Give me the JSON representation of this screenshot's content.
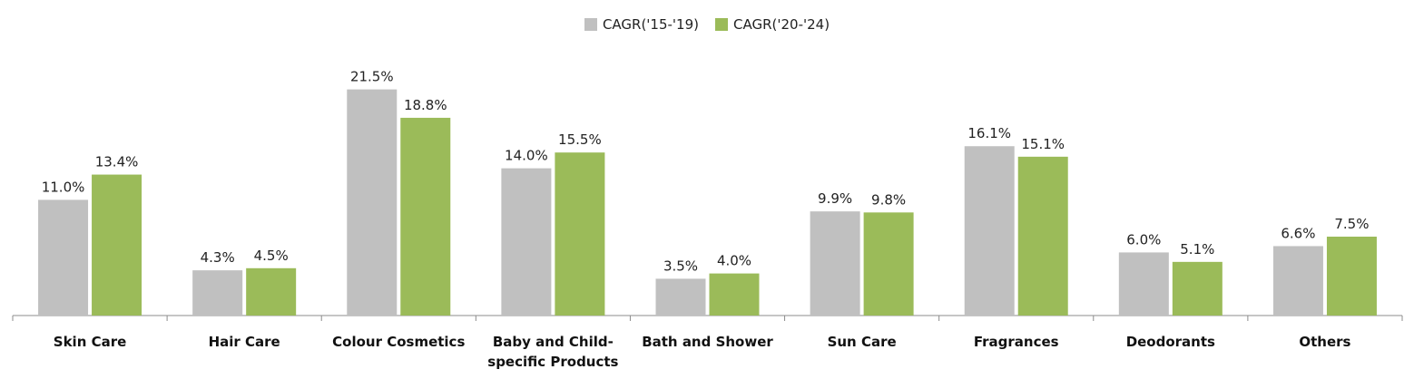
{
  "chart_data": {
    "type": "bar",
    "title": "",
    "xlabel": "",
    "ylabel": "",
    "ylim": [
      0,
      24
    ],
    "grid": false,
    "legend_position": "top-center",
    "categories": [
      [
        "Skin Care"
      ],
      [
        "Hair Care"
      ],
      [
        "Colour Cosmetics"
      ],
      [
        "Baby and Child-",
        "specific Products"
      ],
      [
        "Bath and Shower"
      ],
      [
        "Sun Care"
      ],
      [
        "Fragrances"
      ],
      [
        "Deodorants"
      ],
      [
        "Others"
      ]
    ],
    "series": [
      {
        "name": "CAGR('15-'19)",
        "color": "#c0c0c0",
        "values": [
          11.0,
          4.3,
          21.5,
          14.0,
          3.5,
          9.9,
          16.1,
          6.0,
          6.6
        ],
        "labels": [
          "11.0%",
          "4.3%",
          "21.5%",
          "14.0%",
          "3.5%",
          "9.9%",
          "16.1%",
          "6.0%",
          "6.6%"
        ]
      },
      {
        "name": "CAGR('20-'24)",
        "color": "#9bbb59",
        "values": [
          13.4,
          4.5,
          18.8,
          15.5,
          4.0,
          9.8,
          15.1,
          5.1,
          7.5
        ],
        "labels": [
          "13.4%",
          "4.5%",
          "18.8%",
          "15.5%",
          "4.0%",
          "9.8%",
          "15.1%",
          "5.1%",
          "7.5%"
        ]
      }
    ]
  }
}
